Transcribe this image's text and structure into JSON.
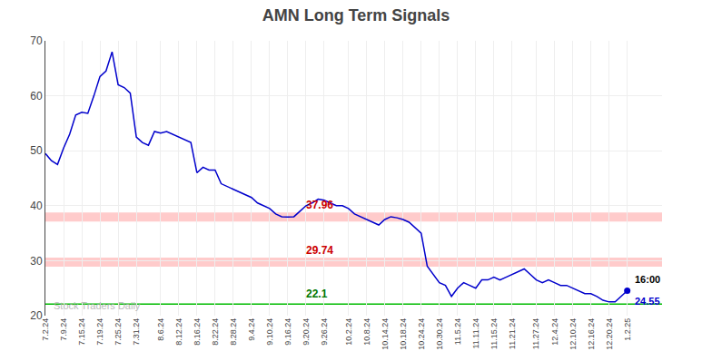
{
  "chart_data": {
    "type": "line",
    "title": "AMN Long Term Signals",
    "categories": [
      "7.2.24",
      null,
      null,
      "7.9.24",
      null,
      null,
      "7.15.24",
      null,
      null,
      "7.19.24",
      null,
      null,
      "7.25.24",
      null,
      null,
      "7.31.24",
      null,
      null,
      null,
      "8.6.24",
      null,
      null,
      "8.12.24",
      null,
      null,
      "8.16.24",
      null,
      null,
      "8.22.24",
      null,
      null,
      "8.28.24",
      null,
      null,
      "9.4.24",
      null,
      null,
      "9.10.24",
      null,
      null,
      "9.16.24",
      null,
      null,
      "9.20.24",
      null,
      null,
      "9.26.24",
      null,
      null,
      null,
      "10.2.24",
      null,
      null,
      "10.8.24",
      null,
      null,
      "10.14.24",
      null,
      null,
      "10.18.24",
      null,
      null,
      "10.24.24",
      null,
      null,
      "10.30.24",
      null,
      null,
      "11.5.24",
      null,
      null,
      "11.11.24",
      null,
      null,
      "11.15.24",
      null,
      null,
      "11.21.24",
      null,
      null,
      null,
      "11.27.24",
      null,
      null,
      "12.4.24",
      null,
      null,
      "12.10.24",
      null,
      null,
      "12.16.24",
      null,
      null,
      "12.20.24",
      null,
      null,
      "1.2.25"
    ],
    "values": [
      49.5,
      48.2,
      47.5,
      50.5,
      53.0,
      56.5,
      57.0,
      56.8,
      60.0,
      63.5,
      64.5,
      68.0,
      62.0,
      61.5,
      60.5,
      52.5,
      51.5,
      51.0,
      53.5,
      53.2,
      53.5,
      53.0,
      52.5,
      52.0,
      51.5,
      46.0,
      47.0,
      46.5,
      46.5,
      44.0,
      43.5,
      43.0,
      42.5,
      42.0,
      41.5,
      40.5,
      40.0,
      39.5,
      38.5,
      38.0,
      37.96,
      38.0,
      39.0,
      40.0,
      40.5,
      41.2,
      41.0,
      40.5,
      40.0,
      40.0,
      39.5,
      38.5,
      38.0,
      37.5,
      37.0,
      36.5,
      37.5,
      38.0,
      37.8,
      37.5,
      37.0,
      36.0,
      35.0,
      29.0,
      27.5,
      26.0,
      25.5,
      23.5,
      25.0,
      26.0,
      25.5,
      25.0,
      26.5,
      26.5,
      27.0,
      26.5,
      27.0,
      27.5,
      28.0,
      28.5,
      27.5,
      26.5,
      26.0,
      26.5,
      26.0,
      25.5,
      25.5,
      25.0,
      24.5,
      24.0,
      24.0,
      23.5,
      22.8,
      22.5,
      22.5,
      23.5,
      24.55
    ],
    "color": "#0000cc",
    "last_point_marker": "circle",
    "ylim": [
      20,
      70
    ],
    "yticks": [
      20,
      30,
      40,
      50,
      60,
      70
    ],
    "grid": true,
    "bands": [
      {
        "y": 37.96,
        "color": "#ffaaaa",
        "label": "37.96",
        "label_color": "#cc0000"
      },
      {
        "y": 29.74,
        "color": "#ffaaaa",
        "label": "29.74",
        "label_color": "#cc0000"
      }
    ],
    "hlines": [
      {
        "y": 22.1,
        "color": "#00bb00",
        "label": "22.1",
        "label_color": "#007700"
      }
    ],
    "last_labels": [
      {
        "text": "16:00",
        "color": "#000000"
      },
      {
        "text": "24.55",
        "color": "#0000cc"
      }
    ],
    "watermark": {
      "text": "Stock Traders Daily",
      "color": "#aaaaaa"
    }
  }
}
